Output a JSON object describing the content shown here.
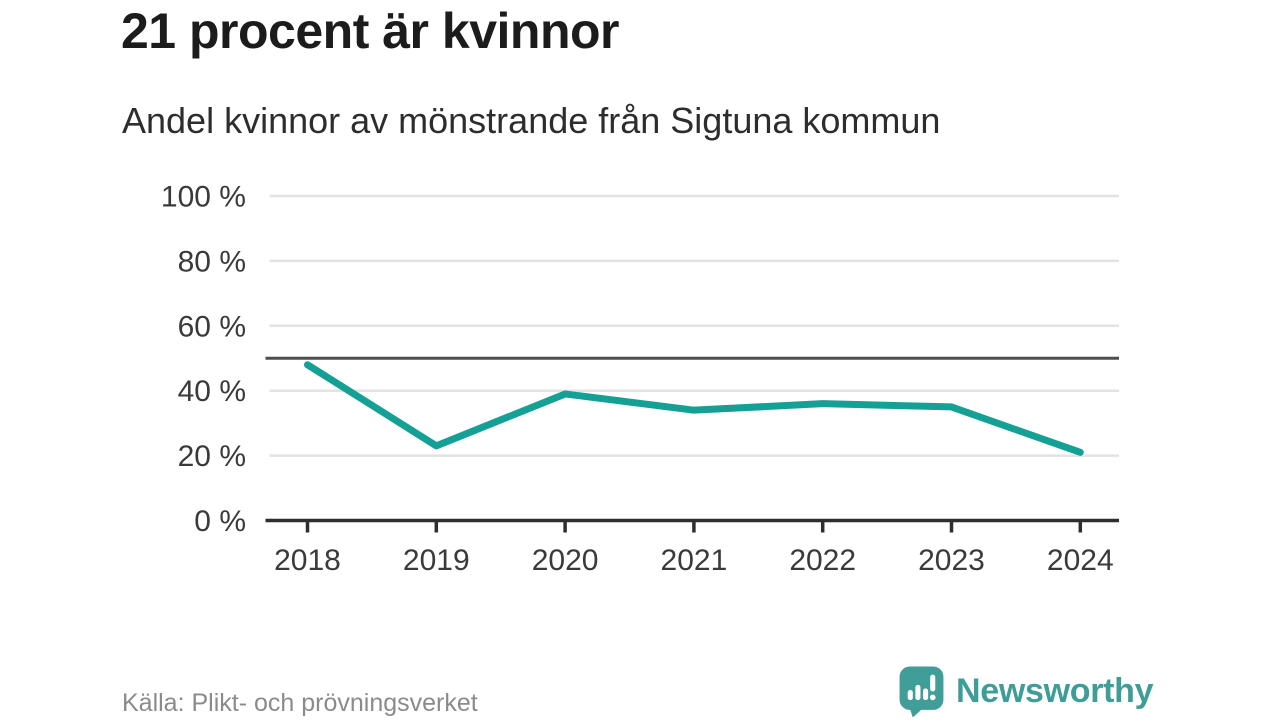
{
  "header": {
    "title": "21 procent är kvinnor",
    "subtitle": "Andel kvinnor av mönstrande från Sigtuna kommun"
  },
  "chart_data": {
    "type": "line",
    "title": "21 procent är kvinnor",
    "subtitle": "Andel kvinnor av mönstrande från Sigtuna kommun",
    "categories": [
      "2018",
      "2019",
      "2020",
      "2021",
      "2022",
      "2023",
      "2024"
    ],
    "series": [
      {
        "name": "Andel kvinnor av mönstrande",
        "values": [
          48,
          23,
          39,
          34,
          36,
          35,
          21
        ]
      }
    ],
    "unit": "%",
    "ylim": [
      0,
      100
    ],
    "yticks": {
      "values": [
        0,
        20,
        40,
        60,
        80,
        100
      ],
      "labels": [
        "0 %",
        "20 %",
        "40 %",
        "60 %",
        "80 %",
        "100 %"
      ]
    },
    "reference_line": {
      "value": 50
    },
    "grid": true,
    "legend": "none",
    "colors": {
      "line": "#14a094",
      "grid": "#e3e3e3",
      "reference": "#4e4e4e",
      "axis": "#2e2e2e",
      "tick_text": "#3a3a3a"
    }
  },
  "footer": {
    "source": "Källa: Plikt- och prövningsverket",
    "brand": "Newsworthy",
    "brand_color": "#3f9d98"
  }
}
